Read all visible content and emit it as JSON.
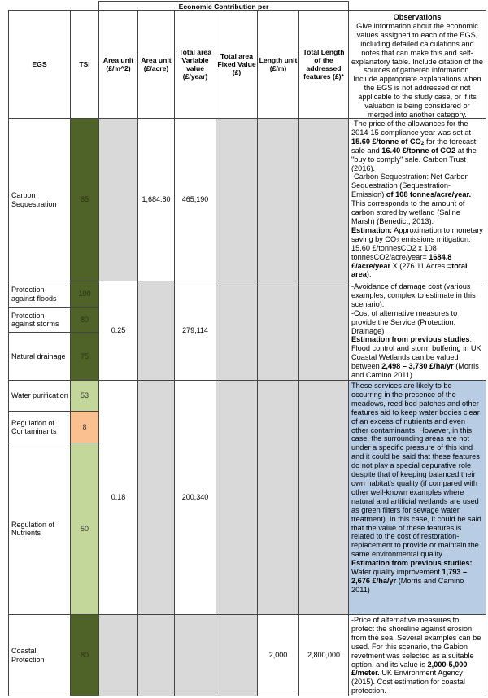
{
  "header": {
    "group": "Economic Contribution per",
    "egs": "EGS",
    "tsi": "TSI",
    "area_m2": "Area unit (£/m^2)",
    "area_acre": "Area unit (£/acre)",
    "variable": "Total area Variable value (£/year)",
    "fixed": "Total area Fixed Value (£)",
    "length_unit": "Length unit (£/m)",
    "total_length": "Total Length of the addressed features (£)*",
    "obs_title": "Observations",
    "obs_text": "Give information about the economic values assigned to each of the EGS, including detailed calculations and notes that can make this and self-explanatory table. Include citation of the sources of gathered information. Include appropriate explanations when the EGS is not addressed or not applicable to the study case, or if its valuation is being considered or merged into another category."
  },
  "colors": {
    "tsi_high": "#4f6228",
    "tsi_mid": "#c4d79b",
    "tsi_low": "#fac090",
    "not_applicable": "#d9d9d9",
    "highlight": "#b8cce4"
  },
  "rows": {
    "carbon": {
      "egs": "Carbon Sequestration",
      "tsi": "85",
      "area_acre": "1,684.80",
      "variable": "465,190"
    },
    "floods": {
      "egs": "Protection against floods",
      "tsi": "100"
    },
    "storms": {
      "egs": "Protection against storms",
      "tsi": "80"
    },
    "drainage": {
      "egs": "Natural drainage",
      "tsi": "75"
    },
    "protection_group": {
      "area_m2": "0.25",
      "variable": "279,114"
    },
    "water": {
      "egs": "Water purification",
      "tsi": "53"
    },
    "contaminants": {
      "egs": "Regulation of Contaminants",
      "tsi": "8"
    },
    "nutrients": {
      "egs": "Regulation of Nutrients",
      "tsi": "50"
    },
    "water_group": {
      "area_m2": "0.18",
      "variable": "200,340"
    },
    "coastal": {
      "egs": "Coastal Protection",
      "tsi": "80",
      "length_unit": "2,000",
      "total_length": "2,800,000"
    }
  },
  "observations": {
    "carbon": [
      {
        "t": "-The price of the allowances for the 2014-15 compliance year was set at "
      },
      {
        "t": "15.60 £/tonne of CO",
        "b": true
      },
      {
        "t": "2",
        "b": true,
        "sub": true
      },
      {
        "t": " for the forecast sale and "
      },
      {
        "t": "16.40 £/tonne of CO2",
        "b": true
      },
      {
        "t": " at the \"buy to comply\" sale. Carbon Trust (2016).",
        "br": true
      },
      {
        "t": "-Carbon Sequestration: Net Carbon Sequestration (Sequestration-Emission) "
      },
      {
        "t": "of 108 tonnes/acre/year.",
        "b": true
      },
      {
        "t": " This corresponds to the amount of carbon stored by wetland (Saline Marsh) (Benedict, 2013).",
        "br": true
      },
      {
        "t": "Estimation:",
        "b": true
      },
      {
        "t": " Approximation to monetary saving by CO"
      },
      {
        "t": "2",
        "sub": true
      },
      {
        "t": " emissions mitigation: 15.60 £/tonnesCO2 x 108 tonnesCO2/acre/year= "
      },
      {
        "t": "1684.8 £/acre/year",
        "b": true
      },
      {
        "t": " X (276.11 Acres ="
      },
      {
        "t": "total area",
        "b": true
      },
      {
        "t": ")."
      }
    ],
    "protection": [
      {
        "t": "-Avoidance of damage cost (various examples, complex to estimate in this scenario).",
        "br": true
      },
      {
        "t": "-Cost of alternative measures to provide the Service (Protection, Drainage)",
        "br": true
      },
      {
        "t": "Estimation from previous studies",
        "b": true
      },
      {
        "t": ": Flood control and storm buffering  in UK Coastal Wetlands can be valued between "
      },
      {
        "t": "2,498 – 3,730 £/ha/yr",
        "b": true
      },
      {
        "t": " (Morris and Camino 2011)"
      }
    ],
    "water": [
      {
        "t": "These services are likely to be occurring in the presence of the meadows, reed bed patches and other features aid to keep water bodies clear of an excess of nutrients and even other contaminants. However, in this case, the surrounding areas are not under a specific pressure of this kind and it could be said that these features do not play a special depurative role despite that of keeping balanced their own habitat's quality (if compared with other well-known examples where natural and artificial wetlands are used as green filters for sewage water treatment). In this case, it could be said that the value of these features is related to the cost of restoration-replacement to provide or maintain the same environmental quality.",
        "br": true
      },
      {
        "t": "Estimation from previous studies:",
        "b": true
      },
      {
        "t": " Water quality improvement "
      },
      {
        "t": "1,793 – 2,676 £/ha/yr",
        "b": true
      },
      {
        "t": " (Morris and Camino 2011)"
      }
    ],
    "coastal": [
      {
        "t": "-Price of alternative measures to protect the shoreline against erosion from the sea. Several examples can be used. For this scenario, the Gabion revetment was selected as a suitable option, and its value is "
      },
      {
        "t": "2,000-5,000 £/meter.",
        "b": true
      },
      {
        "t": " UK Environment Agency (2015). Cost estimation for coastal protection."
      }
    ]
  }
}
